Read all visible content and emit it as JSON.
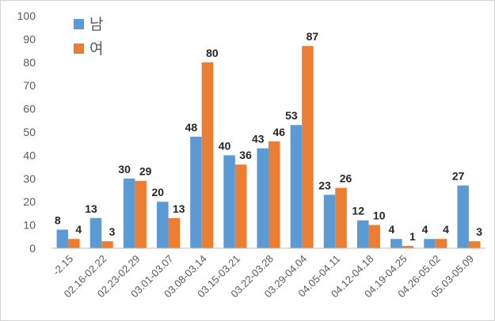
{
  "chart_data": {
    "type": "bar",
    "categories": [
      "-2.15",
      "02.16-02.22",
      "02.23-02.29",
      "03.01-03.07",
      "03.08-03.14",
      "03.15-03.21",
      "03.22-03.28",
      "03.29-04.04",
      "04.05-04.11",
      "04.12-04.18",
      "04.19-04.25",
      "04.26-05.02",
      "05.03-05.09"
    ],
    "series": [
      {
        "name": "남",
        "color": "#5B9BD5",
        "values": [
          8,
          13,
          30,
          20,
          48,
          40,
          43,
          53,
          23,
          12,
          4,
          4,
          27
        ]
      },
      {
        "name": "여",
        "color": "#ED7D31",
        "values": [
          4,
          3,
          29,
          13,
          80,
          36,
          46,
          87,
          26,
          10,
          1,
          4,
          3
        ]
      }
    ],
    "ylim": [
      0,
      100
    ],
    "yticks": [
      0,
      10,
      20,
      30,
      40,
      50,
      60,
      70,
      80,
      90,
      100
    ],
    "legend": "top-left",
    "grid": false,
    "title": "",
    "xlabel": "",
    "ylabel": ""
  }
}
